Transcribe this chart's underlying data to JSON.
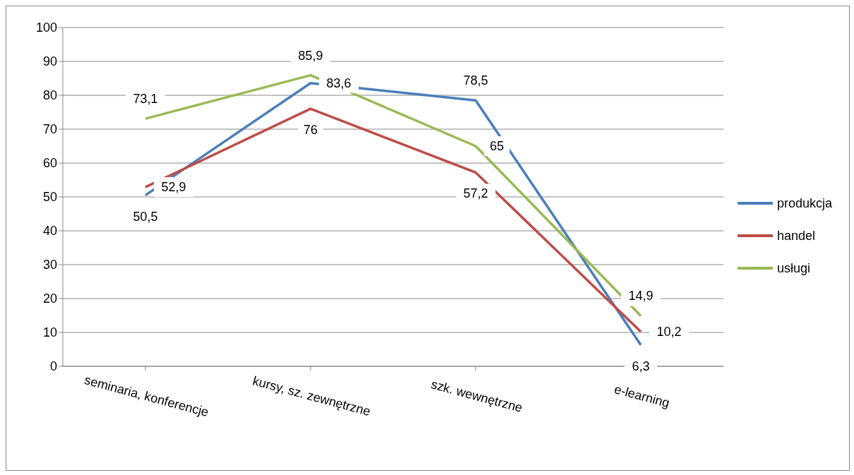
{
  "chart_data": {
    "type": "line",
    "categories": [
      "seminaria, konferencje",
      "kursy, sz. zewnętrzne",
      "szk. wewnętrzne",
      "e-learning"
    ],
    "series": [
      {
        "name": "produkcja",
        "color": "#4a7ebb",
        "values": [
          50.5,
          83.6,
          78.5,
          6.3
        ],
        "value_labels": [
          "50,5",
          "83,6",
          "78,5",
          "6,3"
        ]
      },
      {
        "name": "handel",
        "color": "#be4b48",
        "values": [
          52.9,
          76,
          57.2,
          10.2
        ],
        "value_labels": [
          "52,9",
          "76",
          "57,2",
          "10,2"
        ]
      },
      {
        "name": "usługi",
        "color": "#98b954",
        "values": [
          73.1,
          85.9,
          65,
          14.9
        ],
        "value_labels": [
          "73,1",
          "85,9",
          "65",
          "14,9"
        ]
      }
    ],
    "ylim": [
      0,
      100
    ],
    "yticks": [
      0,
      10,
      20,
      30,
      40,
      50,
      60,
      70,
      80,
      90,
      100
    ],
    "grid": "y",
    "legend": "right",
    "marker": "none",
    "line_style": "solid"
  }
}
